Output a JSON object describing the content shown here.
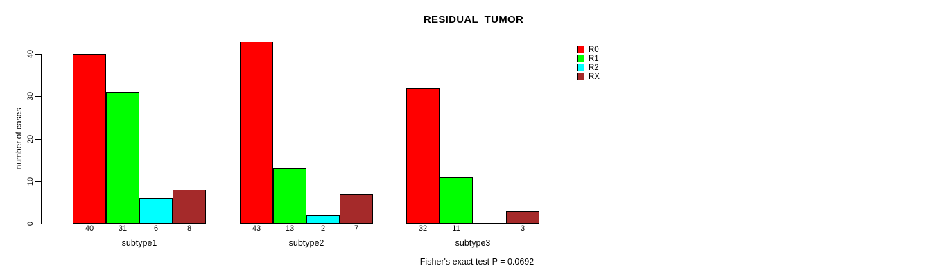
{
  "title": "RESIDUAL_TUMOR",
  "y_axis": {
    "label": "number of cases"
  },
  "footnote": "Fisher's exact test P = 0.0692",
  "chart_data": {
    "type": "bar",
    "title": "RESIDUAL_TUMOR",
    "xlabel": "",
    "ylabel": "number of cases",
    "ylim": [
      0,
      43
    ],
    "yticks": [
      0,
      10,
      20,
      30,
      40
    ],
    "grid": false,
    "legend_position": "top-right",
    "categories": [
      "subtype1",
      "subtype2",
      "subtype3"
    ],
    "series": [
      {
        "name": "R0",
        "color": "#FF0000",
        "values": [
          40,
          43,
          32
        ]
      },
      {
        "name": "R1",
        "color": "#00FF00",
        "values": [
          31,
          13,
          11
        ]
      },
      {
        "name": "R2",
        "color": "#00FFFF",
        "values": [
          6,
          2,
          0
        ]
      },
      {
        "name": "RX",
        "color": "#A52A2A",
        "values": [
          8,
          7,
          3
        ]
      }
    ],
    "bar_value_labels": [
      [
        "40",
        "31",
        "6",
        "8"
      ],
      [
        "43",
        "13",
        "2",
        "7"
      ],
      [
        "32",
        "11",
        "",
        "3"
      ]
    ],
    "annotation": "Fisher's exact test P = 0.0692"
  }
}
